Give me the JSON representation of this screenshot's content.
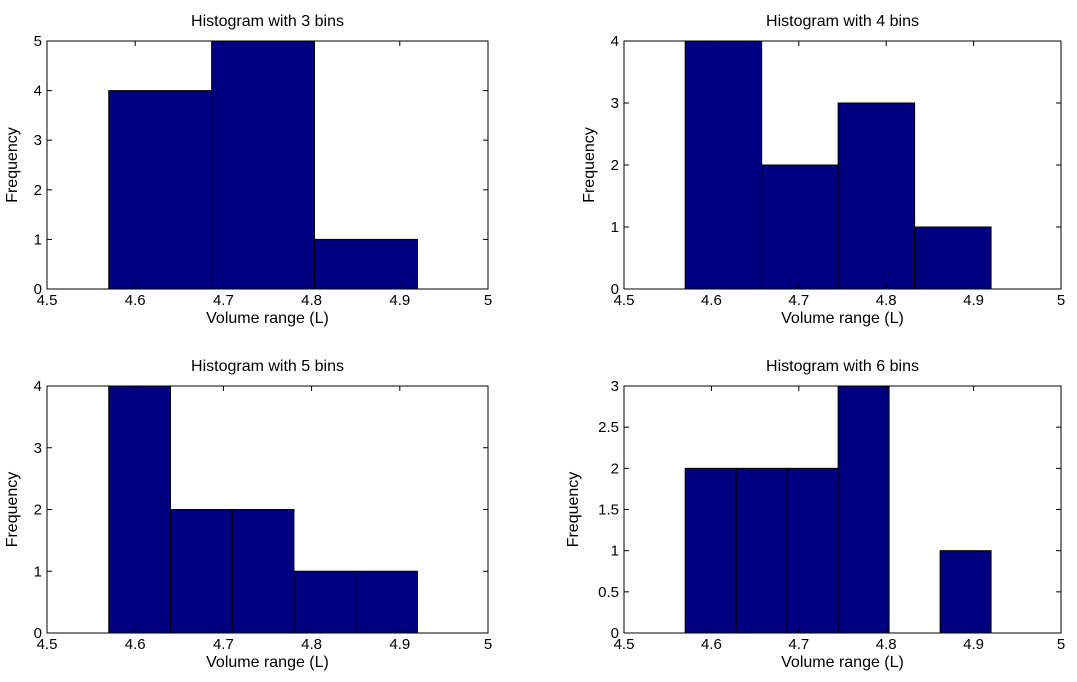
{
  "chart_data": [
    {
      "type": "bar",
      "title": "Histogram with 3 bins",
      "xlabel": "Volume range (L)",
      "ylabel": "Frequency",
      "xlim": [
        4.5,
        5
      ],
      "ylim": [
        0,
        5
      ],
      "xticks": [
        "4.5",
        "4.6",
        "4.7",
        "4.8",
        "4.9",
        "5"
      ],
      "yticks": [
        "0",
        "1",
        "2",
        "3",
        "4",
        "5"
      ],
      "bins": [
        [
          4.57,
          4.6867
        ],
        [
          4.6867,
          4.8033
        ],
        [
          4.8033,
          4.92
        ]
      ],
      "values": [
        4,
        5,
        1
      ],
      "bar_color": "#000080",
      "edge_color": "#000000"
    },
    {
      "type": "bar",
      "title": "Histogram with 4 bins",
      "xlabel": "Volume range (L)",
      "ylabel": "Frequency",
      "xlim": [
        4.5,
        5
      ],
      "ylim": [
        0,
        4
      ],
      "xticks": [
        "4.5",
        "4.6",
        "4.7",
        "4.8",
        "4.9",
        "5"
      ],
      "yticks": [
        "0",
        "1",
        "2",
        "3",
        "4"
      ],
      "bins": [
        [
          4.57,
          4.6575
        ],
        [
          4.6575,
          4.745
        ],
        [
          4.745,
          4.8325
        ],
        [
          4.8325,
          4.92
        ]
      ],
      "values": [
        4,
        2,
        3,
        1
      ],
      "bar_color": "#000080",
      "edge_color": "#000000"
    },
    {
      "type": "bar",
      "title": "Histogram with 5 bins",
      "xlabel": "Volume range (L)",
      "ylabel": "Frequency",
      "xlim": [
        4.5,
        5
      ],
      "ylim": [
        0,
        4
      ],
      "xticks": [
        "4.5",
        "4.6",
        "4.7",
        "4.8",
        "4.9",
        "5"
      ],
      "yticks": [
        "0",
        "1",
        "2",
        "3",
        "4"
      ],
      "bins": [
        [
          4.57,
          4.64
        ],
        [
          4.64,
          4.71
        ],
        [
          4.71,
          4.78
        ],
        [
          4.78,
          4.85
        ],
        [
          4.85,
          4.92
        ]
      ],
      "values": [
        4,
        2,
        2,
        1,
        1
      ],
      "bar_color": "#000080",
      "edge_color": "#000000"
    },
    {
      "type": "bar",
      "title": "Histogram with 6 bins",
      "xlabel": "Volume range (L)",
      "ylabel": "Frequency",
      "xlim": [
        4.5,
        5
      ],
      "ylim": [
        0,
        3
      ],
      "xticks": [
        "4.5",
        "4.6",
        "4.7",
        "4.8",
        "4.9",
        "5"
      ],
      "yticks": [
        "0",
        "0.5",
        "1",
        "1.5",
        "2",
        "2.5",
        "3"
      ],
      "bins": [
        [
          4.57,
          4.6283
        ],
        [
          4.6283,
          4.6867
        ],
        [
          4.6867,
          4.745
        ],
        [
          4.745,
          4.8033
        ],
        [
          4.8033,
          4.8617
        ],
        [
          4.8617,
          4.92
        ]
      ],
      "values": [
        2,
        2,
        2,
        3,
        0,
        1
      ],
      "bar_color": "#000080",
      "edge_color": "#000000"
    }
  ]
}
